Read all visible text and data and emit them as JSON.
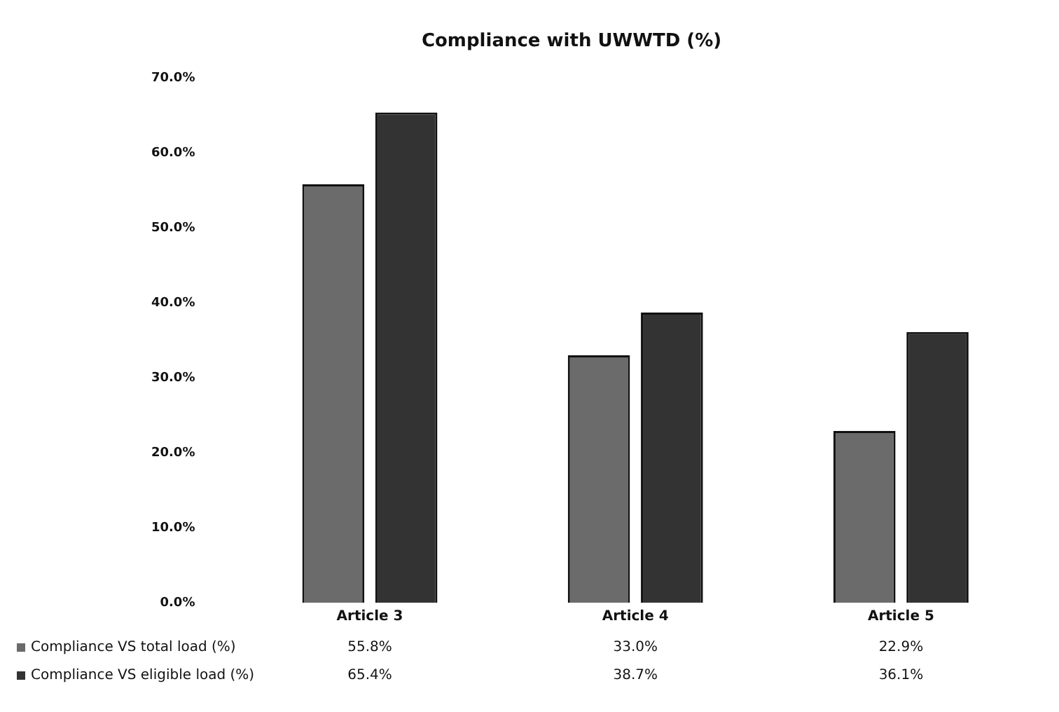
{
  "chart_data": {
    "type": "bar",
    "title": "Compliance with UWWTD (%)",
    "categories": [
      "Article 3",
      "Article 4",
      "Article 5"
    ],
    "series": [
      {
        "name": "Compliance VS total load (%)",
        "color": "#6b6b6b",
        "values": [
          55.8,
          33.0,
          22.9
        ],
        "value_labels": [
          "55.8%",
          "33.0%",
          "22.9%"
        ]
      },
      {
        "name": "Compliance VS eligible load (%)",
        "color": "#333333",
        "values": [
          65.4,
          38.7,
          36.1
        ],
        "value_labels": [
          "65.4%",
          "38.7%",
          "36.1%"
        ]
      }
    ],
    "ylim": [
      0,
      70
    ],
    "yticks": [
      {
        "value": 0,
        "label": "0.0%"
      },
      {
        "value": 10,
        "label": "10.0%"
      },
      {
        "value": 20,
        "label": "20.0%"
      },
      {
        "value": 30,
        "label": "30.0%"
      },
      {
        "value": 40,
        "label": "40.0%"
      },
      {
        "value": 50,
        "label": "50.0%"
      },
      {
        "value": 60,
        "label": "60.0%"
      },
      {
        "value": 70,
        "label": "70.0%"
      }
    ],
    "legend": "bottom"
  }
}
